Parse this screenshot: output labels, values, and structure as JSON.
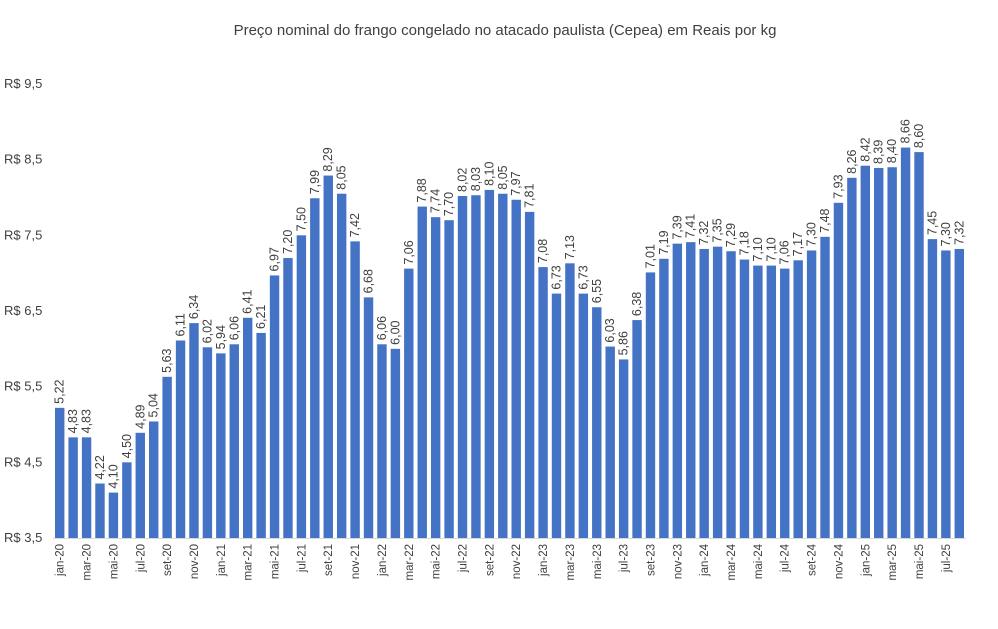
{
  "chart_data": {
    "type": "bar",
    "title": "Preço nominal do frango congelado no atacado paulista (Cepea) em Reais por kg",
    "xlabel": "",
    "ylabel": "",
    "ylim": [
      3.5,
      9.5
    ],
    "y_ticks": [
      "R$ 3,5",
      "R$ 4,5",
      "R$ 5,5",
      "R$ 6,5",
      "R$ 7,5",
      "R$ 8,5",
      "R$ 9,5"
    ],
    "y_tick_values": [
      3.5,
      4.5,
      5.5,
      6.5,
      7.5,
      8.5,
      9.5
    ],
    "grid": false,
    "legend": "none",
    "bar_color": "#4472C4",
    "categories": [
      "jan-20",
      "fev-20",
      "mar-20",
      "abr-20",
      "mai-20",
      "jun-20",
      "jul-20",
      "ago-20",
      "set-20",
      "out-20",
      "nov-20",
      "dez-20",
      "jan-21",
      "fev-21",
      "mar-21",
      "abr-21",
      "mai-21",
      "jun-21",
      "jul-21",
      "ago-21",
      "set-21",
      "out-21",
      "nov-21",
      "dez-21",
      "jan-22",
      "fev-22",
      "mar-22",
      "abr-22",
      "mai-22",
      "jun-22",
      "jul-22",
      "ago-22",
      "set-22",
      "out-22",
      "nov-22",
      "dez-22",
      "jan-23",
      "fev-23",
      "mar-23",
      "abr-23",
      "mai-23",
      "jun-23",
      "jul-23",
      "ago-23",
      "set-23",
      "out-23",
      "nov-23",
      "dez-23",
      "jan-24",
      "fev-24",
      "mar-24",
      "abr-24",
      "mai-24",
      "jun-24",
      "jul-24",
      "ago-24",
      "set-24",
      "out-24",
      "nov-24",
      "dez-24",
      "jan-25",
      "fev-25",
      "mar-25",
      "abr-25",
      "mai-25",
      "jun-25",
      "jul-25",
      "ago-25"
    ],
    "shown_x_labels": [
      "jan-20",
      "mar-20",
      "mai-20",
      "jul-20",
      "set-20",
      "nov-20",
      "jan-21",
      "mar-21",
      "mai-21",
      "jul-21",
      "set-21",
      "nov-21",
      "jan-22",
      "mar-22",
      "mai-22",
      "jul-22",
      "set-22",
      "nov-22",
      "jan-23",
      "mar-23",
      "mai-23",
      "jul-23",
      "set-23",
      "nov-23",
      "jan-24",
      "mar-24",
      "mai-24",
      "jul-24",
      "set-24",
      "nov-24",
      "jan-25",
      "mar-25",
      "mai-25",
      "jul-25"
    ],
    "values": [
      5.22,
      4.83,
      4.83,
      4.22,
      4.1,
      4.5,
      4.89,
      5.04,
      5.63,
      6.11,
      6.34,
      6.02,
      5.94,
      6.06,
      6.41,
      6.21,
      6.97,
      7.2,
      7.5,
      7.99,
      8.29,
      8.05,
      7.42,
      6.68,
      6.06,
      6.0,
      7.06,
      7.88,
      7.74,
      7.7,
      8.02,
      8.03,
      8.1,
      8.05,
      7.97,
      7.81,
      7.08,
      6.73,
      7.13,
      6.73,
      6.55,
      6.03,
      5.86,
      6.38,
      7.01,
      7.19,
      7.39,
      7.41,
      7.32,
      7.35,
      7.29,
      7.18,
      7.1,
      7.1,
      7.06,
      7.17,
      7.3,
      7.48,
      7.93,
      8.26,
      8.42,
      8.39,
      8.4,
      8.66,
      8.6,
      7.45,
      7.3,
      7.32
    ],
    "value_labels": [
      "5,22",
      "4,83",
      "4,83",
      "4,22",
      "4,10",
      "4,50",
      "4,89",
      "5,04",
      "5,63",
      "6,11",
      "6,34",
      "6,02",
      "5,94",
      "6,06",
      "6,41",
      "6,21",
      "6,97",
      "7,20",
      "7,50",
      "7,99",
      "8,29",
      "8,05",
      "7,42",
      "6,68",
      "6,06",
      "6,00",
      "7,06",
      "7,88",
      "7,74",
      "7,70",
      "8,02",
      "8,03",
      "8,10",
      "8,05",
      "7,97",
      "7,81",
      "7,08",
      "6,73",
      "7,13",
      "6,73",
      "6,55",
      "6,03",
      "5,86",
      "6,38",
      "7,01",
      "7,19",
      "7,39",
      "7,41",
      "7,32",
      "7,35",
      "7,29",
      "7,18",
      "7,10",
      "7,10",
      "7,06",
      "7,17",
      "7,30",
      "7,48",
      "7,93",
      "8,26",
      "8,42",
      "8,39",
      "8,40",
      "8,66",
      "8,60",
      "7,45",
      "7,30",
      "7,32"
    ]
  }
}
